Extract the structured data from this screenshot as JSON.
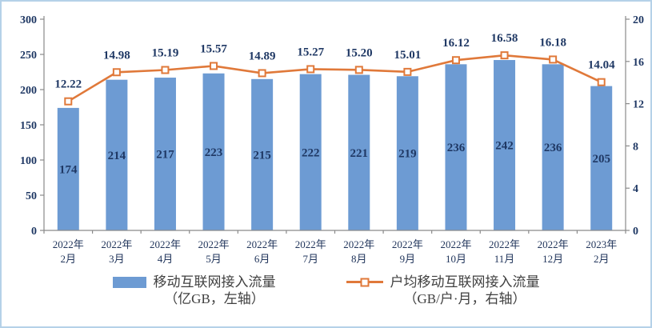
{
  "colors": {
    "bar": "#6D9BD3",
    "line": "#E0793A",
    "marker_fill": "#FFFFFF",
    "data_label": "#1F3864",
    "tick_label": "#1F3864",
    "x_label": "#22365C",
    "axis_line": "#8A8A8A",
    "legend_text": "#404040",
    "frame_border": "#B5D1E8"
  },
  "chart_data": {
    "type": "combo bar+line, dual axis",
    "grid": "off",
    "legend_position": "bottom-center",
    "categories": [
      {
        "line1": "2022年",
        "line2": "2月"
      },
      {
        "line1": "2022年",
        "line2": "3月"
      },
      {
        "line1": "2022年",
        "line2": "4月"
      },
      {
        "line1": "2022年",
        "line2": "5月"
      },
      {
        "line1": "2022年",
        "line2": "6月"
      },
      {
        "line1": "2022年",
        "line2": "7月"
      },
      {
        "line1": "2022年",
        "line2": "8月"
      },
      {
        "line1": "2022年",
        "line2": "9月"
      },
      {
        "line1": "2022年",
        "line2": "10月"
      },
      {
        "line1": "2022年",
        "line2": "11月"
      },
      {
        "line1": "2022年",
        "line2": "12月"
      },
      {
        "line1": "2023年",
        "line2": "2月"
      }
    ],
    "series": {
      "bars": {
        "name": "移动互联网接入流量（亿GB，左轴）",
        "axis": "left",
        "values": [
          174,
          214,
          217,
          223,
          215,
          222,
          221,
          219,
          236,
          242,
          236,
          205
        ],
        "labels": [
          "174",
          "214",
          "217",
          "223",
          "215",
          "222",
          "221",
          "219",
          "236",
          "242",
          "236",
          "205"
        ]
      },
      "line": {
        "name": "户均移动互联网接入流量（GB/户·月，右轴）",
        "axis": "right",
        "values": [
          12.22,
          14.98,
          15.19,
          15.57,
          14.89,
          15.27,
          15.2,
          15.01,
          16.12,
          16.58,
          16.18,
          14.04
        ],
        "labels": [
          "12.22",
          "14.98",
          "15.19",
          "15.57",
          "14.89",
          "15.27",
          "15.20",
          "15.01",
          "16.12",
          "16.58",
          "16.18",
          "14.04"
        ]
      }
    },
    "left_axis": {
      "min": 0,
      "max": 300,
      "ticks": [
        0,
        50,
        100,
        150,
        200,
        250,
        300
      ]
    },
    "right_axis": {
      "min": 0,
      "max": 20,
      "ticks": [
        0,
        4,
        8,
        12,
        16,
        20
      ]
    }
  },
  "legend": {
    "items": [
      {
        "line1": "移动互联网接入流量",
        "line2": "（亿GB，左轴）"
      },
      {
        "line1": "户均移动互联网接入流量",
        "line2": "（GB/户·月，右轴）"
      }
    ]
  }
}
